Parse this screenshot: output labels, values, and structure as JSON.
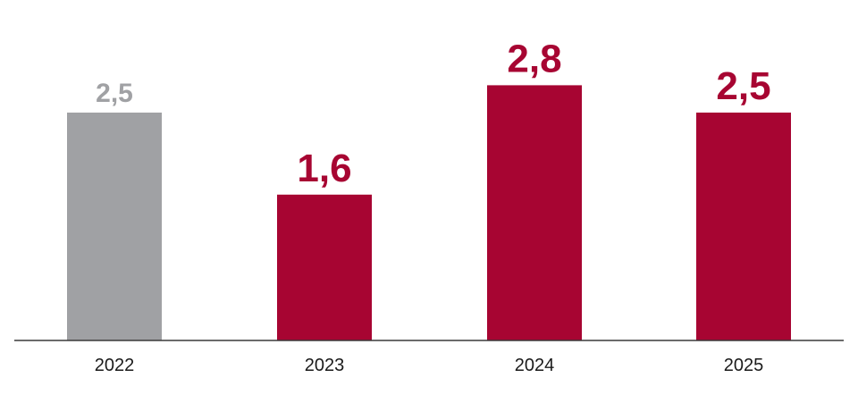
{
  "chart_data": {
    "type": "bar",
    "categories": [
      "2022",
      "2023",
      "2024",
      "2025"
    ],
    "values": [
      2.5,
      1.6,
      2.8,
      2.5
    ],
    "value_labels": [
      "2,5",
      "1,6",
      "2,8",
      "2,5"
    ],
    "title": "",
    "xlabel": "",
    "ylabel": "",
    "ylim": [
      0,
      3.6
    ],
    "grid": false,
    "legend": "none",
    "colors": {
      "historical": "#a0a1a4",
      "forecast": "#a70532",
      "axis": "#3a3a3a"
    },
    "bar_kinds": [
      "historical",
      "forecast",
      "forecast",
      "forecast"
    ]
  }
}
